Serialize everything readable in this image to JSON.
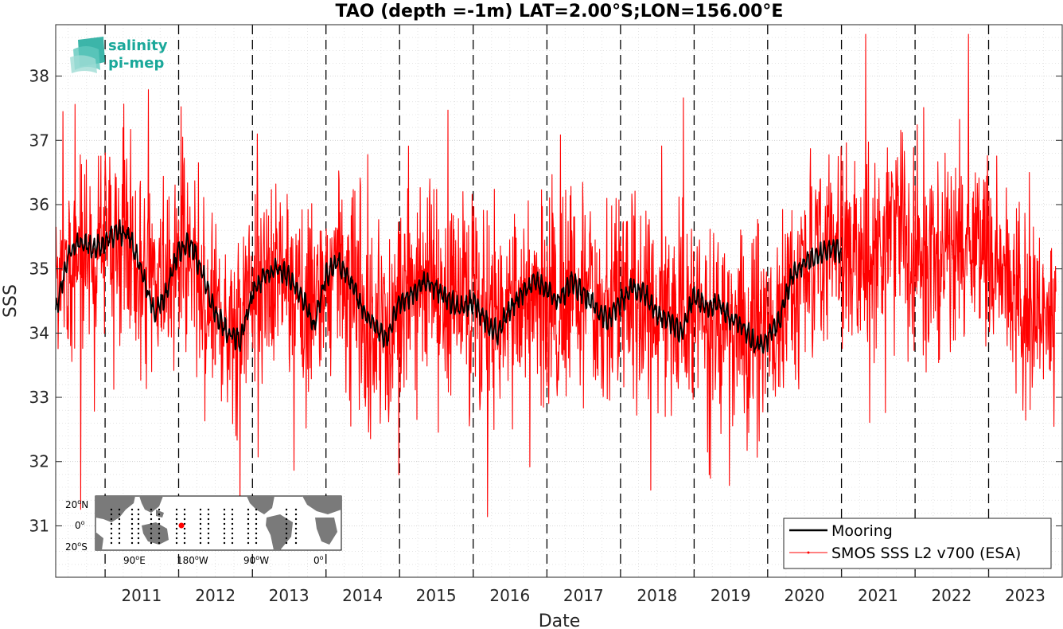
{
  "chart_data": {
    "type": "line",
    "title": "TAO (depth =-1m) LAT=2.00°S;LON=156.00°E",
    "xlabel": "Date",
    "ylabel": "SSS",
    "xlim": [
      "2010-05-01",
      "2024-01-01"
    ],
    "ylim": [
      30.2,
      38.8
    ],
    "x_ticks": [
      "2011",
      "2012",
      "2013",
      "2014",
      "2015",
      "2016",
      "2017",
      "2018",
      "2019",
      "2020",
      "2021",
      "2022",
      "2023"
    ],
    "y_ticks": [
      31,
      32,
      33,
      34,
      35,
      36,
      37,
      38
    ],
    "year_boundaries": [
      "2011-01-01",
      "2012-01-01",
      "2013-01-01",
      "2014-01-01",
      "2015-01-01",
      "2016-01-01",
      "2017-01-01",
      "2018-01-01",
      "2019-01-01",
      "2020-01-01",
      "2021-01-01",
      "2022-01-01",
      "2023-01-01"
    ],
    "grid": true,
    "legend_position": "bottom-right",
    "colors": {
      "mooring": "#000000",
      "smos": "#ff0000"
    },
    "series": [
      {
        "name": "Mooring",
        "x": [
          "2010-05",
          "2010-07",
          "2010-09",
          "2010-11",
          "2011-01",
          "2011-03",
          "2011-05",
          "2011-07",
          "2011-09",
          "2011-11",
          "2012-01",
          "2012-03",
          "2012-05",
          "2012-07",
          "2012-09",
          "2012-11",
          "2013-01",
          "2013-03",
          "2013-05",
          "2013-07",
          "2013-09",
          "2013-11",
          "2014-01",
          "2014-03",
          "2014-05",
          "2014-07",
          "2014-09",
          "2014-11",
          "2015-01",
          "2015-03",
          "2015-05",
          "2015-07",
          "2015-09",
          "2015-11",
          "2016-01",
          "2016-03",
          "2016-05",
          "2016-07",
          "2016-09",
          "2016-11",
          "2017-01",
          "2017-03",
          "2017-05",
          "2017-07",
          "2017-09",
          "2017-11",
          "2018-01",
          "2018-03",
          "2018-05",
          "2018-07",
          "2018-09",
          "2018-11",
          "2019-01",
          "2019-03",
          "2019-05",
          "2019-07",
          "2019-09",
          "2019-11",
          "2020-01",
          "2020-03",
          "2020-05",
          "2020-07",
          "2020-09",
          "2020-11",
          "2021-01"
        ],
        "values": [
          34.3,
          35.2,
          35.4,
          35.3,
          35.4,
          35.6,
          35.5,
          35.0,
          34.3,
          34.6,
          35.3,
          35.4,
          34.9,
          34.3,
          34.0,
          33.9,
          34.6,
          34.9,
          35.0,
          34.9,
          34.6,
          34.1,
          34.9,
          35.1,
          34.8,
          34.4,
          34.1,
          33.9,
          34.5,
          34.6,
          34.8,
          34.7,
          34.5,
          34.4,
          34.5,
          34.2,
          34.0,
          34.4,
          34.6,
          34.8,
          34.7,
          34.5,
          34.8,
          34.6,
          34.4,
          34.2,
          34.5,
          34.7,
          34.6,
          34.3,
          34.2,
          34.0,
          34.6,
          34.4,
          34.5,
          34.2,
          34.1,
          33.8,
          33.9,
          34.2,
          34.9,
          35.1,
          35.2,
          35.3,
          35.3
        ]
      },
      {
        "name": "SMOS SSS L2 v700 (ESA)",
        "x": [
          "2010-05",
          "2010-07",
          "2010-09",
          "2010-11",
          "2011-01",
          "2011-03",
          "2011-05",
          "2011-07",
          "2011-09",
          "2011-11",
          "2012-01",
          "2012-03",
          "2012-05",
          "2012-07",
          "2012-09",
          "2012-11",
          "2013-01",
          "2013-03",
          "2013-05",
          "2013-07",
          "2013-09",
          "2013-11",
          "2014-01",
          "2014-03",
          "2014-05",
          "2014-07",
          "2014-09",
          "2014-11",
          "2015-01",
          "2015-03",
          "2015-05",
          "2015-07",
          "2015-09",
          "2015-11",
          "2016-01",
          "2016-03",
          "2016-05",
          "2016-07",
          "2016-09",
          "2016-11",
          "2017-01",
          "2017-03",
          "2017-05",
          "2017-07",
          "2017-09",
          "2017-11",
          "2018-01",
          "2018-03",
          "2018-05",
          "2018-07",
          "2018-09",
          "2018-11",
          "2019-01",
          "2019-03",
          "2019-05",
          "2019-07",
          "2019-09",
          "2019-11",
          "2020-01",
          "2020-03",
          "2020-05",
          "2020-07",
          "2020-09",
          "2020-11",
          "2021-01",
          "2021-03",
          "2021-05",
          "2021-07",
          "2021-09",
          "2021-11",
          "2022-01",
          "2022-03",
          "2022-05",
          "2022-07",
          "2022-09",
          "2022-11",
          "2023-01",
          "2023-03",
          "2023-05",
          "2023-07",
          "2023-09",
          "2023-11",
          "2023-12"
        ],
        "values": [
          34.3,
          35.0,
          35.3,
          35.2,
          35.4,
          35.5,
          35.4,
          34.9,
          34.5,
          34.8,
          35.2,
          35.1,
          34.7,
          34.4,
          34.1,
          34.0,
          34.6,
          34.8,
          34.9,
          34.8,
          34.5,
          34.3,
          34.8,
          34.9,
          34.7,
          34.4,
          34.2,
          34.1,
          34.5,
          34.6,
          34.7,
          34.6,
          34.5,
          34.4,
          34.5,
          34.3,
          34.2,
          34.4,
          34.6,
          34.7,
          34.6,
          34.5,
          34.7,
          34.6,
          34.5,
          34.3,
          34.5,
          34.6,
          34.5,
          34.4,
          34.3,
          34.2,
          34.5,
          34.4,
          34.4,
          34.2,
          34.1,
          34.0,
          34.0,
          34.3,
          34.8,
          35.1,
          35.2,
          35.3,
          35.4,
          35.3,
          35.2,
          35.3,
          35.5,
          35.6,
          35.3,
          35.1,
          35.3,
          35.6,
          35.4,
          35.2,
          35.2,
          34.9,
          34.7,
          34.5,
          34.2,
          34.0,
          34.2
        ]
      }
    ]
  },
  "inset_map": {
    "lat_labels": [
      "20",
      "N",
      "0",
      "",
      "20",
      "S"
    ],
    "lon_labels": [
      "90",
      "E",
      "180",
      "W",
      "90",
      "W",
      "0",
      ""
    ]
  },
  "logo": {
    "line1": "salinity",
    "line2": "pi-mep"
  }
}
